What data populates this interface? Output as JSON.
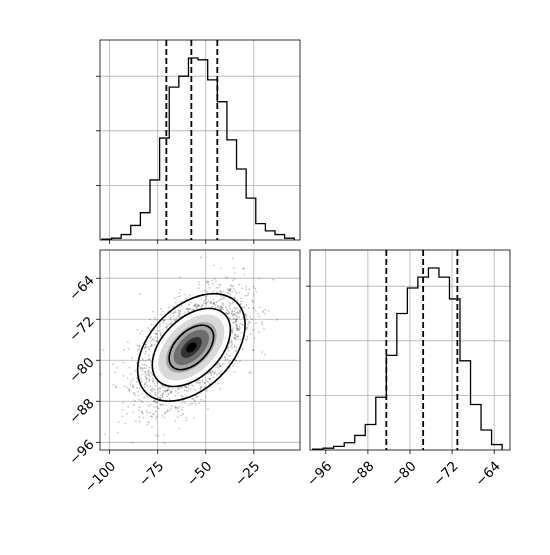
{
  "chart_data": [
    {
      "panel": "marginal-1",
      "type": "histogram",
      "xlim": [
        -105,
        -1
      ],
      "bins": [
        [
          -104,
          -99,
          0.005
        ],
        [
          -99,
          -94,
          0.01
        ],
        [
          -94,
          -89,
          0.03
        ],
        [
          -89,
          -84,
          0.08
        ],
        [
          -84,
          -79,
          0.15
        ],
        [
          -79,
          -74,
          0.33
        ],
        [
          -74,
          -69,
          0.56
        ],
        [
          -69,
          -64,
          0.84
        ],
        [
          -64,
          -59,
          0.9
        ],
        [
          -59,
          -54,
          1.0
        ],
        [
          -54,
          -49,
          0.99
        ],
        [
          -49,
          -44,
          0.88
        ],
        [
          -44,
          -39,
          0.76
        ],
        [
          -39,
          -34,
          0.55
        ],
        [
          -34,
          -29,
          0.39
        ],
        [
          -29,
          -24,
          0.23
        ],
        [
          -24,
          -19,
          0.09
        ],
        [
          -19,
          -14,
          0.05
        ],
        [
          -14,
          -9,
          0.03
        ],
        [
          -9,
          -4,
          0.01
        ]
      ],
      "quantiles": [
        -70.5,
        -57.5,
        -44.0
      ],
      "x_ticks": [
        -100,
        -75,
        -50,
        -25
      ],
      "y_ticks": [
        0.3,
        0.6,
        0.9
      ]
    },
    {
      "panel": "joint",
      "type": "scatter-density",
      "xlim": [
        -105,
        -1
      ],
      "ylim": [
        -97.5,
        -58.5
      ],
      "center": [
        -57.5,
        -77.5
      ],
      "sd": [
        13.5,
        5.5
      ],
      "correlation": 0.55,
      "x_ticks": [
        -100,
        -75,
        -50,
        -25
      ],
      "y_ticks": [
        -64,
        -72,
        -80,
        -88,
        -96
      ],
      "x_tick_labels": [
        "−100",
        "−75",
        "−50",
        "−25"
      ],
      "y_tick_labels": [
        "−64",
        "−72",
        "−80",
        "−88",
        "−96"
      ]
    },
    {
      "panel": "marginal-2",
      "type": "histogram",
      "xlim": [
        -99,
        -61
      ],
      "bins": [
        [
          -98.5,
          -96.5,
          0.005
        ],
        [
          -96.5,
          -94.5,
          0.01
        ],
        [
          -94.5,
          -92.5,
          0.02
        ],
        [
          -92.5,
          -90.5,
          0.04
        ],
        [
          -90.5,
          -88.5,
          0.08
        ],
        [
          -88.5,
          -86.5,
          0.14
        ],
        [
          -86.5,
          -84.5,
          0.29
        ],
        [
          -84.5,
          -82.5,
          0.52
        ],
        [
          -82.5,
          -80.5,
          0.75
        ],
        [
          -80.5,
          -78.5,
          0.89
        ],
        [
          -78.5,
          -76.5,
          0.95
        ],
        [
          -76.5,
          -74.5,
          1.0
        ],
        [
          -74.5,
          -72.5,
          0.95
        ],
        [
          -72.5,
          -70.5,
          0.83
        ],
        [
          -70.5,
          -68.5,
          0.49
        ],
        [
          -68.5,
          -66.5,
          0.25
        ],
        [
          -66.5,
          -64.5,
          0.11
        ],
        [
          -64.5,
          -62.5,
          0.03
        ]
      ],
      "quantiles": [
        -84.5,
        -77.5,
        -71.0
      ],
      "x_ticks": [
        -96,
        -88,
        -80,
        -72,
        -64
      ],
      "x_tick_labels": [
        "−96",
        "−88",
        "−80",
        "−72",
        "−64"
      ],
      "y_ticks": [
        0.3,
        0.6,
        0.9
      ]
    }
  ]
}
